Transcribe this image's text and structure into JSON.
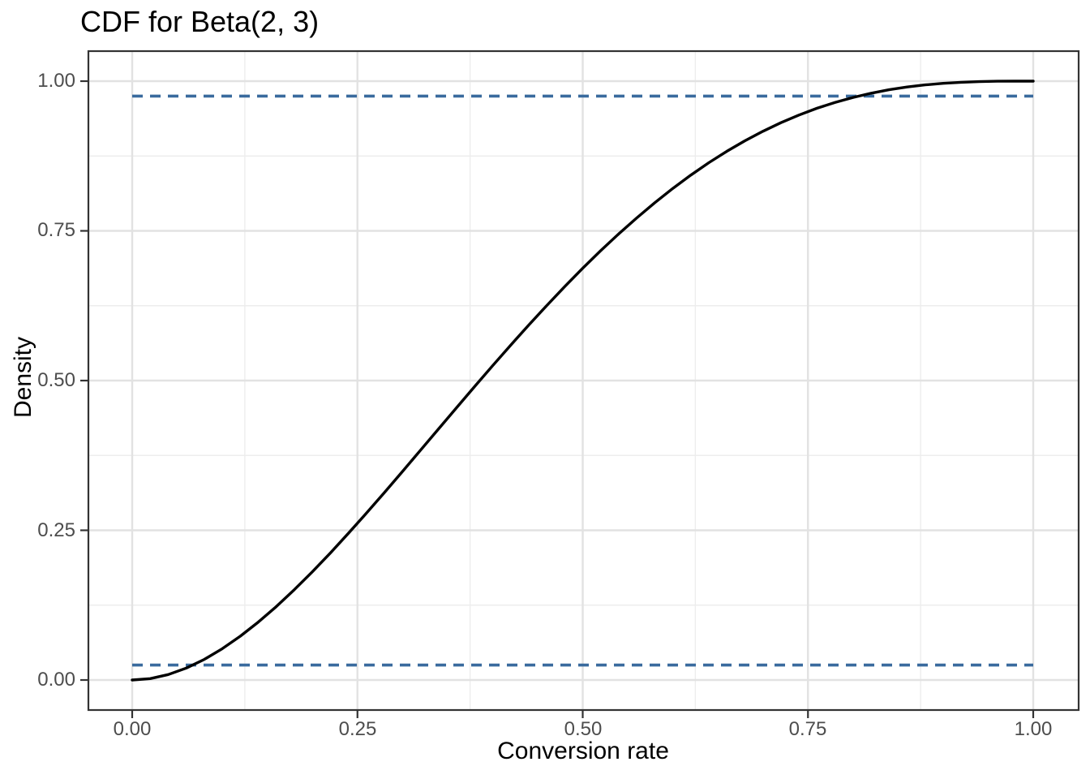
{
  "title": "CDF for Beta(2, 3)",
  "axes": {
    "x": {
      "title": "Conversion rate",
      "tick_labels": [
        "0.00",
        "0.25",
        "0.50",
        "0.75",
        "1.00"
      ]
    },
    "y": {
      "title": "Density",
      "tick_labels": [
        "0.00",
        "0.25",
        "0.50",
        "0.75",
        "1.00"
      ]
    }
  },
  "chart_data": {
    "type": "line",
    "title": "CDF for Beta(2, 3)",
    "xlabel": "Conversion rate",
    "ylabel": "Density",
    "xlim": [
      0,
      1
    ],
    "ylim": [
      0,
      1
    ],
    "x_ticks": [
      0,
      0.25,
      0.5,
      0.75,
      1
    ],
    "y_ticks": [
      0,
      0.25,
      0.5,
      0.75,
      1
    ],
    "minor_ticks": [
      0.125,
      0.375,
      0.625,
      0.875
    ],
    "grid": "major and minor gridlines on, light gray on white, dark panel border",
    "legend": "none",
    "series": [
      {
        "name": "Beta(2, 3) CDF",
        "style": "solid",
        "color": "#000000",
        "x": [
          0,
          0.02,
          0.04,
          0.06,
          0.08,
          0.1,
          0.12,
          0.14,
          0.16,
          0.18,
          0.2,
          0.22,
          0.24,
          0.26,
          0.28,
          0.3,
          0.32,
          0.34,
          0.36,
          0.38,
          0.4,
          0.42,
          0.44,
          0.46,
          0.48,
          0.5,
          0.52,
          0.54,
          0.56,
          0.58,
          0.6,
          0.62,
          0.64,
          0.66,
          0.68,
          0.7,
          0.72,
          0.74,
          0.76,
          0.78,
          0.8,
          0.82,
          0.84,
          0.86,
          0.88,
          0.9,
          0.92,
          0.94,
          0.96,
          0.98,
          1
        ],
        "y": [
          0,
          0.0023,
          0.0091,
          0.0199,
          0.0344,
          0.0523,
          0.0732,
          0.0968,
          0.1228,
          0.1509,
          0.1808,
          0.2122,
          0.245,
          0.2787,
          0.3132,
          0.3483,
          0.3837,
          0.4193,
          0.4547,
          0.49,
          0.5248,
          0.559,
          0.5926,
          0.6252,
          0.6569,
          0.6875,
          0.7169,
          0.745,
          0.7717,
          0.797,
          0.8208,
          0.8431,
          0.8638,
          0.8829,
          0.9004,
          0.9163,
          0.9306,
          0.9434,
          0.9547,
          0.9644,
          0.9728,
          0.9798,
          0.9856,
          0.9902,
          0.9937,
          0.9963,
          0.9981,
          0.9992,
          0.9998,
          1,
          1
        ]
      }
    ],
    "reference_lines": [
      {
        "name": "upper quantile line",
        "orientation": "horizontal",
        "y": 0.975,
        "x_start": 0,
        "x_end": 1,
        "style": "dashed",
        "color": "#3A6B9E"
      },
      {
        "name": "lower quantile line",
        "orientation": "horizontal",
        "y": 0.025,
        "x_start": 0,
        "x_end": 1,
        "style": "dashed",
        "color": "#3A6B9E"
      }
    ]
  },
  "style_colors": {
    "curve": "#000000",
    "dashed_line": "#3A6B9E",
    "grid_major": "#E2E2E2",
    "grid_minor": "#EDEDED",
    "panel_border": "#333333",
    "tick_label": "#4D4D4D",
    "text": "#000000",
    "background": "#FFFFFF"
  }
}
